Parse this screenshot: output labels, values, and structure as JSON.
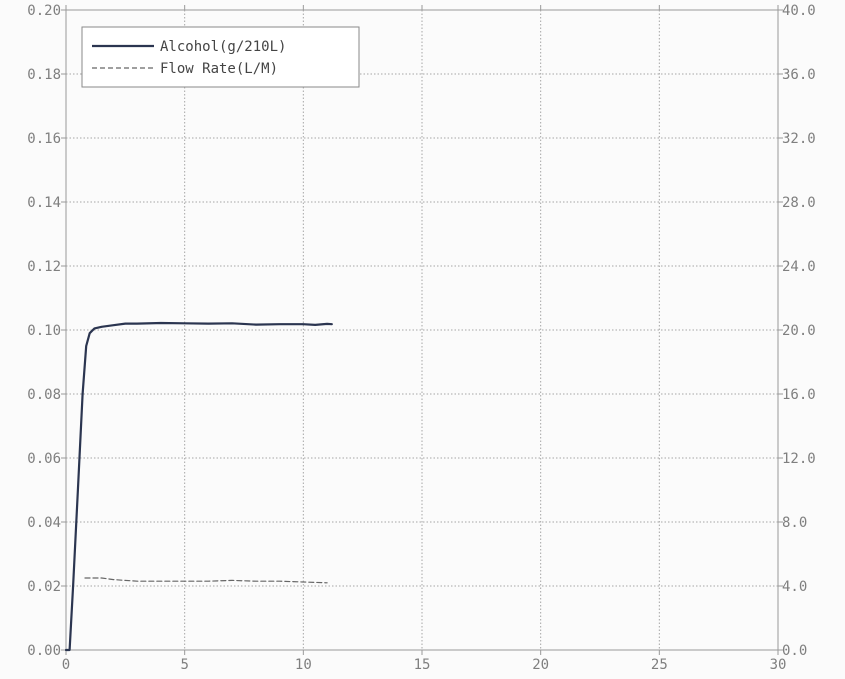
{
  "chart_data": {
    "type": "line",
    "title": "",
    "xlabel": "",
    "ylabel": "",
    "y2label": "",
    "xlim": [
      0,
      30
    ],
    "ylim": [
      0,
      0.2
    ],
    "y2lim": [
      0,
      40
    ],
    "grid": true,
    "legend_position": "top-left",
    "x_ticks": [
      "0",
      "5",
      "10",
      "15",
      "20",
      "25",
      "30"
    ],
    "y_ticks": [
      "0.00",
      "0.02",
      "0.04",
      "0.06",
      "0.08",
      "0.10",
      "0.12",
      "0.14",
      "0.16",
      "0.18",
      "0.20"
    ],
    "y2_ticks": [
      "0.0",
      "4.0",
      "8.0",
      "12.0",
      "16.0",
      "20.0",
      "24.0",
      "28.0",
      "32.0",
      "36.0",
      "40.0"
    ],
    "series": [
      {
        "name": "Alcohol(g/210L)",
        "axis": "left",
        "style": "solid",
        "color": "#2b3550",
        "x": [
          0,
          0.15,
          0.3,
          0.5,
          0.7,
          0.85,
          1.0,
          1.2,
          1.5,
          2.0,
          2.5,
          3.0,
          4.0,
          5.0,
          6.0,
          7.0,
          8.0,
          9.0,
          10.0,
          10.5,
          11.0,
          11.2
        ],
        "y": [
          0.0,
          0.0,
          0.02,
          0.05,
          0.08,
          0.095,
          0.099,
          0.1005,
          0.101,
          0.1015,
          0.102,
          0.102,
          0.1022,
          0.1021,
          0.102,
          0.1021,
          0.1017,
          0.1018,
          0.1018,
          0.1016,
          0.1019,
          0.1018
        ]
      },
      {
        "name": "Flow Rate(L/M)",
        "axis": "right",
        "style": "dashed",
        "color": "#666666",
        "x": [
          0.8,
          1.5,
          2.0,
          3.0,
          4.0,
          5.0,
          6.0,
          7.0,
          8.0,
          9.0,
          10.0,
          11.0
        ],
        "y": [
          4.5,
          4.5,
          4.4,
          4.3,
          4.3,
          4.3,
          4.3,
          4.35,
          4.3,
          4.3,
          4.25,
          4.2
        ]
      }
    ]
  }
}
